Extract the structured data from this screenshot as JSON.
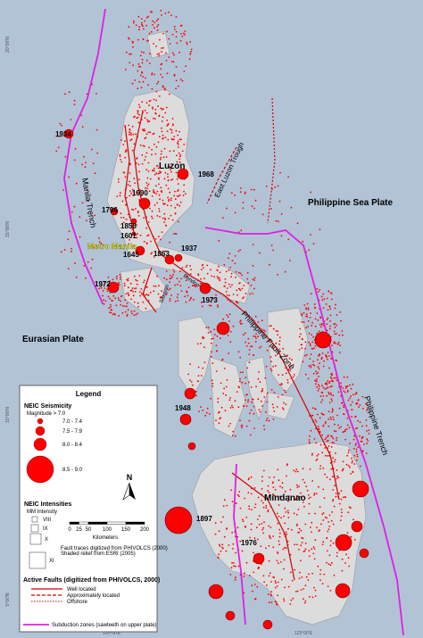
{
  "map": {
    "labels": {
      "luzon": "Luzon",
      "mindanao": "Mindanao",
      "metro_manila": "Metro Manila",
      "philippine_sea_plate": "Philippine Sea Plate",
      "eurasian_plate": "Eurasian Plate",
      "manila_trench": "Manila Trench",
      "east_luzon_trough": "East Luzon Trough",
      "philippine_fault_zone": "Philippine Fault Zone",
      "philippine_trench": "Philippine Trench",
      "bondoc": "Bondoc",
      "sibuyan": "Sibuyan"
    },
    "lat_labels": [
      "20°00'N",
      "15°00'N",
      "10°00'N",
      "5°00'N"
    ],
    "lon_labels": [
      "120°00'E",
      "125°00'E"
    ],
    "events": [
      "1934",
      "1968",
      "1990",
      "1796",
      "1858",
      "1601",
      "1645",
      "1863",
      "1937",
      "1972",
      "1973",
      "1948",
      "1897",
      "1976"
    ]
  },
  "legend": {
    "title": "Legend",
    "seismicity": "NEIC Seismicity",
    "magnitude_note": "Magnitude > 7.0",
    "magnitudes": [
      "7.0 - 7.4",
      "7.5 - 7.9",
      "8.0 - 8.4",
      "8.5 - 9.0"
    ],
    "north": "N",
    "intensities": "NEIC Intensities",
    "mm": "MM Intensity",
    "mm_levels": [
      "VIII",
      "IX",
      "X",
      "XI"
    ],
    "scale_ticks": [
      0,
      25,
      50,
      100,
      150,
      200
    ],
    "scale_unit": "Kilometers",
    "source_faults": "Fault traces digitized from PHIVOLCS (2000)",
    "source_relief": "Shaded relief from ESRI (2005)",
    "active_faults": "Active Faults (digitized from PHIVOLCS, 2000)",
    "fault_types": [
      "Well located",
      "Approximately located",
      "Offshore"
    ],
    "subduction": "Subduction zones (sawteeth on upper plate)"
  }
}
